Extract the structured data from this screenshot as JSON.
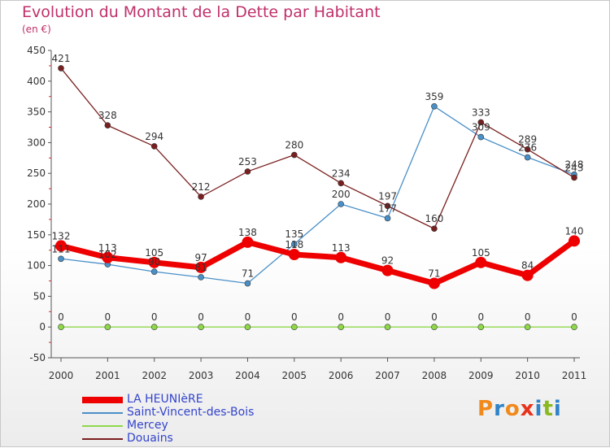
{
  "title": "Evolution du Montant de la Dette par Habitant",
  "subtitle": "(en €)",
  "logo_letters": [
    "P",
    "r",
    "o",
    "x",
    "i",
    "t",
    "i"
  ],
  "logo_colors": [
    "#f08a1c",
    "#2f83c8",
    "#f08a1c",
    "#e8331c",
    "#2f83c8",
    "#8ab820",
    "#2f83c8"
  ],
  "chart_data": {
    "type": "line",
    "x": [
      "2000",
      "2001",
      "2002",
      "2003",
      "2004",
      "2005",
      "2006",
      "2007",
      "2008",
      "2009",
      "2010",
      "2011"
    ],
    "ylim": [
      -50,
      450
    ],
    "yticks": [
      -50,
      0,
      50,
      100,
      150,
      200,
      250,
      300,
      350,
      400,
      450
    ],
    "grid": false,
    "legend_position": "bottom-left",
    "series": [
      {
        "name": "LA HEUNIèRE",
        "color": "#ee0000",
        "values": [
          132,
          113,
          105,
          97,
          138,
          118,
          113,
          92,
          71,
          105,
          84,
          140
        ]
      },
      {
        "name": "Saint-Vincent-des-Bois",
        "color": "#4a90c8",
        "values": [
          111,
          102,
          90,
          81,
          71,
          135,
          200,
          177,
          359,
          309,
          276,
          248
        ]
      },
      {
        "name": "Mercey",
        "color": "#8ed84a",
        "values": [
          0,
          0,
          0,
          0,
          0,
          0,
          0,
          0,
          0,
          0,
          0,
          0
        ]
      },
      {
        "name": "Douains",
        "color": "#7a1f1f",
        "values": [
          421,
          328,
          294,
          212,
          253,
          280,
          234,
          197,
          160,
          333,
          289,
          243
        ]
      }
    ]
  }
}
